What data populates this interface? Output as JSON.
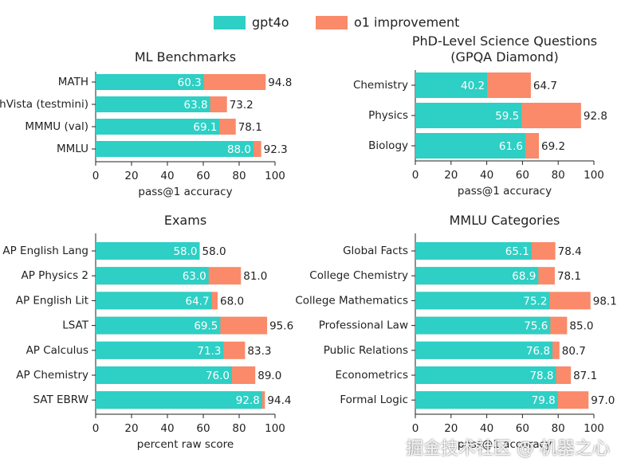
{
  "legend": [
    {
      "name": "gpt4o",
      "color": "#2ecfc4"
    },
    {
      "name": "o1 improvement",
      "color": "#fa8a6a"
    }
  ],
  "watermark": "掘金技术社区 @ 机器之心",
  "chart_data": [
    {
      "type": "bar",
      "title": "ML Benchmarks",
      "xlabel": "pass@1 accuracy",
      "categories": [
        "MATH",
        "MathVista (testmini)",
        "MMMU (val)",
        "MMLU"
      ],
      "series": [
        {
          "values": [
            60.3,
            63.8,
            69.1,
            88.0
          ],
          "value_labels": [
            "60.3",
            "63.8",
            "69.1",
            "88.0"
          ]
        },
        {
          "values": [
            94.8,
            73.2,
            78.1,
            92.3
          ],
          "value_labels": [
            "94.8",
            "73.2",
            "78.1",
            "92.3"
          ]
        }
      ],
      "xlim": [
        0,
        100
      ],
      "xticks": [
        0,
        20,
        40,
        60,
        80,
        100
      ]
    },
    {
      "type": "bar",
      "title": "PhD-Level Science Questions\n(GPQA Diamond)",
      "xlabel": "pass@1 accuracy",
      "categories": [
        "Chemistry",
        "Physics",
        "Biology"
      ],
      "series": [
        {
          "values": [
            40.2,
            59.5,
            61.6
          ],
          "value_labels": [
            "40.2",
            "59.5",
            "61.6"
          ]
        },
        {
          "values": [
            64.7,
            92.8,
            69.2
          ],
          "value_labels": [
            "64.7",
            "92.8",
            "69.2"
          ]
        }
      ],
      "xlim": [
        0,
        100
      ],
      "xticks": [
        0,
        20,
        40,
        60,
        80,
        100
      ]
    },
    {
      "type": "bar",
      "title": "Exams",
      "xlabel": "percent raw score",
      "categories": [
        "AP English Lang",
        "AP Physics 2",
        "AP English Lit",
        "LSAT",
        "AP Calculus",
        "AP Chemistry",
        "SAT EBRW"
      ],
      "series": [
        {
          "values": [
            58.0,
            63.0,
            64.7,
            69.5,
            71.3,
            76.0,
            92.8
          ],
          "value_labels": [
            "58.0",
            "63.0",
            "64.7",
            "69.5",
            "71.3",
            "76.0",
            "92.8"
          ]
        },
        {
          "values": [
            58.0,
            81.0,
            68.0,
            95.6,
            83.3,
            89.0,
            94.4
          ],
          "value_labels": [
            "58.0",
            "81.0",
            "68.0",
            "95.6",
            "83.3",
            "89.0",
            "94.4"
          ]
        }
      ],
      "xlim": [
        0,
        100
      ],
      "xticks": [
        0,
        20,
        40,
        60,
        80,
        100
      ]
    },
    {
      "type": "bar",
      "title": "MMLU Categories",
      "xlabel": "pass@1 accuracy",
      "categories": [
        "Global Facts",
        "College Chemistry",
        "College Mathematics",
        "Professional Law",
        "Public Relations",
        "Econometrics",
        "Formal Logic"
      ],
      "series": [
        {
          "values": [
            65.1,
            68.9,
            75.2,
            75.6,
            76.8,
            78.8,
            79.8
          ],
          "value_labels": [
            "65.1",
            "68.9",
            "75.2",
            "75.6",
            "76.8",
            "78.8",
            "79.8"
          ]
        },
        {
          "values": [
            78.4,
            78.1,
            98.1,
            85.0,
            80.7,
            87.1,
            97.0
          ],
          "value_labels": [
            "78.4",
            "78.1",
            "98.1",
            "85.0",
            "80.7",
            "87.1",
            "97.0"
          ]
        }
      ],
      "xlim": [
        0,
        100
      ],
      "xticks": [
        0,
        20,
        40,
        60,
        80,
        100
      ]
    }
  ]
}
